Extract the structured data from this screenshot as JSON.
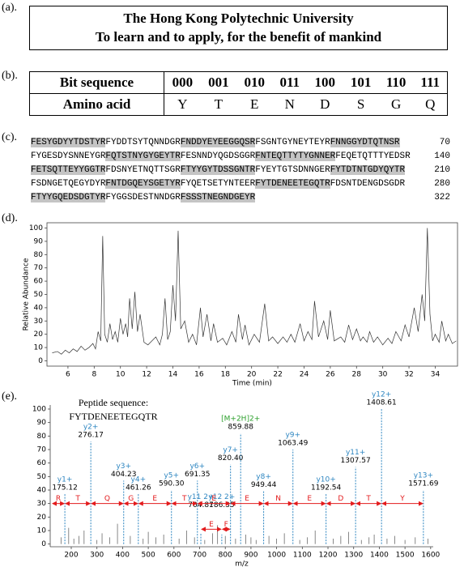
{
  "panel_labels": [
    "(a).",
    "(b).",
    "(c).",
    "(d).",
    "(e)."
  ],
  "header": {
    "line1": "The Hong Kong Polytechnic University",
    "line2": "To learn and to apply, for the benefit of mankind"
  },
  "table": {
    "rows": [
      [
        "Bit sequence",
        "000",
        "001",
        "010",
        "011",
        "100",
        "101",
        "110",
        "111"
      ],
      [
        "Amino acid",
        "Y",
        "T",
        "E",
        "N",
        "D",
        "S",
        "G",
        "Q"
      ]
    ]
  },
  "sequence": {
    "lines": [
      {
        "segments": [
          {
            "text": "FESYGDYYTDSTYR",
            "highlight": true
          },
          {
            "text": "FYDDTSYTQNNDGR",
            "highlight": false
          },
          {
            "text": "FNDDYEYEEGGQSR",
            "highlight": true
          },
          {
            "text": "FSGNTGYNEYTEYR",
            "highlight": false
          },
          {
            "text": "FNNGGYDTQTNSR",
            "highlight": true
          }
        ],
        "number": 70
      },
      {
        "segments": [
          {
            "text": "FYGESDYSNNEYGR",
            "highlight": false
          },
          {
            "text": "FQTSTNYGYGEYTR",
            "highlight": true
          },
          {
            "text": "FESNNDYQGDSGGR",
            "highlight": false
          },
          {
            "text": "FNTEQTTYTYGNNER",
            "highlight": true
          },
          {
            "text": "FEQETQTTTYEDSR",
            "highlight": false
          }
        ],
        "number": 140
      },
      {
        "segments": [
          {
            "text": "FETSQTTEYYGGTR",
            "highlight": true
          },
          {
            "text": "FDSNYETNQTTSGR",
            "highlight": false
          },
          {
            "text": "FTYYGYTDSSGNTR",
            "highlight": true
          },
          {
            "text": "FYEYTGTSDNNGER",
            "highlight": false
          },
          {
            "text": "FYTDTNTGDYQYTR",
            "highlight": true
          }
        ],
        "number": 210
      },
      {
        "segments": [
          {
            "text": "FSDNGETQEGYDYR",
            "highlight": false
          },
          {
            "text": "FNTDGQEYSGETYR",
            "highlight": true
          },
          {
            "text": "FYQETSETYNTEER",
            "highlight": false
          },
          {
            "text": "FYTDENEETEGQTR",
            "highlight": true
          },
          {
            "text": "FDSNTDENGDSGDR",
            "highlight": false
          }
        ],
        "number": 280
      },
      {
        "segments": [
          {
            "text": "FTYYGQEDSDGTYR",
            "highlight": true
          },
          {
            "text": "FYGGSDESTNNDGR",
            "highlight": false
          },
          {
            "text": "FSSSTNEGNDGEYR",
            "highlight": true
          }
        ],
        "number": 322
      }
    ]
  },
  "chart_data": [
    {
      "type": "line",
      "x_label": "Time (min)",
      "y_label": "Relative Abundance",
      "color": "#333333",
      "xlim": [
        4.4,
        35.7
      ],
      "ylim": [
        -4,
        104
      ],
      "xticks": [
        6,
        8,
        10,
        12,
        14,
        16,
        18,
        20,
        22,
        24,
        26,
        28,
        30,
        32,
        34
      ],
      "yticks": [
        0,
        10,
        20,
        30,
        40,
        50,
        60,
        70,
        80,
        90,
        100
      ],
      "x": [
        4.8,
        5.2,
        5.5,
        5.8,
        6.1,
        6.4,
        6.7,
        7.0,
        7.3,
        7.6,
        7.9,
        8.1,
        8.3,
        8.5,
        8.65,
        8.8,
        9.0,
        9.2,
        9.4,
        9.6,
        9.8,
        10.0,
        10.2,
        10.4,
        10.55,
        10.7,
        10.9,
        11.1,
        11.3,
        11.5,
        11.8,
        12.1,
        12.4,
        12.7,
        13.0,
        13.2,
        13.4,
        13.6,
        13.8,
        14.0,
        14.2,
        14.4,
        14.6,
        14.9,
        15.2,
        15.5,
        15.8,
        16.1,
        16.3,
        16.6,
        16.9,
        17.1,
        17.4,
        17.8,
        18.1,
        18.5,
        18.8,
        19.0,
        19.3,
        19.5,
        19.8,
        20.2,
        20.6,
        21.0,
        21.3,
        21.6,
        22.0,
        22.4,
        22.7,
        23.0,
        23.3,
        23.7,
        24.0,
        24.3,
        24.6,
        24.8,
        25.1,
        25.5,
        25.8,
        26.0,
        26.3,
        26.8,
        27.1,
        27.4,
        27.7,
        28.0,
        28.3,
        28.5,
        28.8,
        29.0,
        29.3,
        29.6,
        30.0,
        30.4,
        30.7,
        31.0,
        31.4,
        31.7,
        32.0,
        32.4,
        32.7,
        33.0,
        33.2,
        33.4,
        33.6,
        33.8,
        34.0,
        34.3,
        34.5,
        34.8,
        35.0,
        35.3,
        35.6
      ],
      "values": [
        6,
        7,
        5,
        8,
        6,
        9,
        7,
        11,
        8,
        10,
        13,
        9,
        22,
        15,
        94,
        20,
        14,
        28,
        16,
        22,
        14,
        32,
        20,
        28,
        18,
        47,
        24,
        52,
        22,
        35,
        14,
        12,
        15,
        18,
        12,
        20,
        47,
        16,
        22,
        57,
        30,
        98,
        24,
        30,
        14,
        20,
        12,
        40,
        18,
        35,
        15,
        28,
        14,
        17,
        12,
        22,
        14,
        35,
        16,
        27,
        12,
        20,
        14,
        43,
        15,
        18,
        13,
        18,
        14,
        20,
        14,
        28,
        15,
        22,
        16,
        45,
        18,
        30,
        16,
        38,
        15,
        18,
        14,
        27,
        16,
        24,
        15,
        18,
        14,
        22,
        14,
        18,
        12,
        17,
        13,
        22,
        15,
        27,
        18,
        40,
        22,
        50,
        30,
        100,
        35,
        15,
        20,
        14,
        30,
        15,
        20,
        13,
        15
      ]
    },
    {
      "type": "stem",
      "annotation": [
        "Peptide sequence:",
        "FYTDENEETEGQTR"
      ],
      "x_label": "m/z",
      "xlim": [
        118,
        1610
      ],
      "ylim": [
        -2,
        103
      ],
      "xticks": [
        200,
        300,
        400,
        500,
        600,
        700,
        800,
        900,
        1000,
        1100,
        1200,
        1300,
        1400,
        1500,
        1600
      ],
      "yticks": [
        0,
        10,
        20,
        30,
        40,
        50,
        60,
        70,
        80,
        90,
        100
      ],
      "peaks": {
        "color": "#555555",
        "x": [
          160,
          190,
          210,
          230,
          250,
          300,
          320,
          350,
          380,
          430,
          480,
          500,
          530,
          560,
          620,
          650,
          680,
          720,
          750,
          770,
          800,
          840,
          880,
          900,
          920,
          970,
          1000,
          1030,
          1090,
          1120,
          1150,
          1220,
          1250,
          1280,
          1330,
          1360,
          1380,
          1430,
          1460,
          1500,
          1540,
          1590
        ],
        "values": [
          5,
          12,
          4,
          6,
          10,
          3,
          8,
          5,
          15,
          6,
          4,
          9,
          5,
          7,
          4,
          10,
          5,
          3,
          8,
          14,
          6,
          4,
          7,
          5,
          3,
          6,
          4,
          8,
          3,
          5,
          10,
          4,
          6,
          9,
          3,
          5,
          7,
          4,
          6,
          3,
          5,
          4
        ]
      },
      "y_ions": {
        "color": "#2e86c1",
        "names": [
          "y1+",
          "y2+",
          "y3+",
          "y4+",
          "y5+",
          "y6+",
          "y7+",
          "y8+",
          "y9+",
          "y10+",
          "y11+",
          "y12+",
          "y13+"
        ],
        "x": [
          175.12,
          276.17,
          404.23,
          461.26,
          590.3,
          691.35,
          820.4,
          949.44,
          1063.49,
          1192.54,
          1307.57,
          1408.61,
          1571.69
        ],
        "x_labels": [
          "175.12",
          "276.17",
          "404.23",
          "461.26",
          "590.30",
          "691.35",
          "820.40",
          "949.44",
          "1063.49",
          "1192.54",
          "1307.57",
          "1408.61",
          "1571.69"
        ],
        "values": [
          37,
          76,
          47,
          37,
          40,
          47,
          59,
          39,
          70,
          37,
          57,
          100,
          40
        ]
      },
      "precursor": {
        "color": "#2ca02c",
        "name": "[M+2H]2+",
        "x": 859.88,
        "x_label": "859.88",
        "value": 82
      },
      "doubly_charged_ions": {
        "color": "#2e86c1",
        "names": [
          "y11 2+",
          "y12 2+"
        ],
        "x": [
          704.81,
          786.35
        ],
        "x_labels": [
          "704.81",
          "786.35"
        ],
        "values": [
          8,
          7
        ]
      },
      "ladder": {
        "color": "#e31a1c",
        "letters": [
          "R",
          "T",
          "Q",
          "G",
          "E",
          "T",
          "E",
          "E",
          "N",
          "E",
          "D",
          "T",
          "Y"
        ]
      },
      "internal_ladder": {
        "letters": [
          "E",
          "F"
        ]
      }
    }
  ]
}
